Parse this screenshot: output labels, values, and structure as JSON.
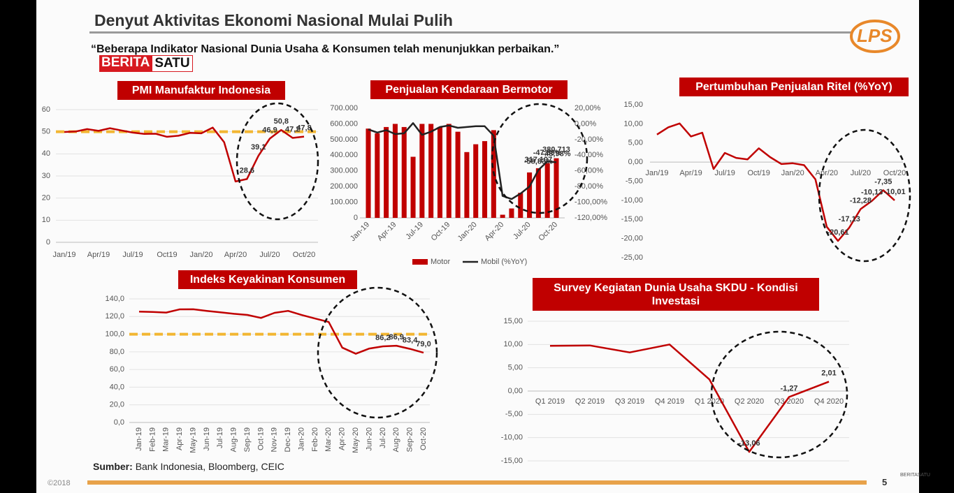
{
  "header": {
    "title": "Denyut Aktivitas Ekonomi Nasional Mulai Pulih",
    "subtitle": "“Beberapa Indikator Nasional Dunia Usaha & Konsumen telah menunjukkan perbaikan.”",
    "logo": "LPS",
    "watermark": [
      "BERITA",
      "SATU"
    ]
  },
  "source": {
    "label": "Sumber:",
    "text": "Bank Indonesia, Bloomberg, CEIC"
  },
  "footer": {
    "copyright": "©2018",
    "page": "5",
    "watermark": "BERITASATU"
  },
  "chart_data": [
    {
      "type": "line",
      "title": "PMI Manufaktur Indonesia",
      "color": "#c00000",
      "grid": true,
      "categories": [
        "Jan/19",
        null,
        null,
        "Apr/19",
        null,
        null,
        "Jul/19",
        null,
        null,
        "Oct19",
        null,
        null,
        "Jan/20",
        null,
        null,
        "Apr/20",
        null,
        null,
        "Jul/20",
        null,
        null,
        "Oct/20"
      ],
      "values": [
        49.9,
        50.1,
        51.2,
        50.4,
        51.6,
        50.6,
        49.6,
        49.0,
        49.1,
        47.7,
        48.2,
        49.5,
        49.3,
        51.9,
        45.3,
        27.5,
        28.6,
        39.1,
        46.9,
        50.8,
        47.2,
        47.8
      ],
      "value_labels": [
        null,
        null,
        null,
        null,
        null,
        null,
        null,
        null,
        null,
        null,
        null,
        null,
        null,
        null,
        null,
        null,
        "28,6",
        "39,1",
        "46,9",
        "50,8",
        "47,2",
        "47,8"
      ],
      "reference_line": 50,
      "reference_color": "#f2b632",
      "ylim": [
        0,
        60
      ],
      "yticks": [
        0,
        10,
        20,
        30,
        40,
        50,
        60
      ]
    },
    {
      "type": "bar",
      "title": "Penjualan Kendaraan Bermotor",
      "legend": "bottom",
      "categories": [
        "Jan-19",
        null,
        null,
        "Apr-19",
        null,
        null,
        "Jul-19",
        null,
        null,
        "Oct-19",
        null,
        null,
        "Jan-20",
        null,
        null,
        "Apr-20",
        null,
        null,
        "Jul-20",
        null,
        null,
        "Oct-20"
      ],
      "series": [
        {
          "name": "Motor",
          "type": "bar",
          "color": "#c00000",
          "values": [
            570000,
            540000,
            580000,
            600000,
            580000,
            390000,
            600000,
            600000,
            580000,
            600000,
            550000,
            420000,
            470000,
            490000,
            560000,
            20000,
            60000,
            160000,
            290000,
            317107,
            350000,
            380713
          ],
          "value_labels": [
            null,
            null,
            null,
            null,
            null,
            null,
            null,
            null,
            null,
            null,
            null,
            null,
            null,
            null,
            null,
            null,
            null,
            null,
            null,
            "317.107",
            null,
            "380.713"
          ]
        },
        {
          "name": "Mobil (%YoY)",
          "type": "line",
          "axis": "y2",
          "color": "#222222",
          "values": [
            -7,
            -11,
            -8,
            -13,
            -12,
            1,
            -14,
            -10,
            -4,
            -2,
            -5,
            -4,
            -3,
            -3,
            -15,
            -92,
            -96,
            -89,
            -80,
            -58.83,
            -47.89,
            -48.98
          ],
          "value_labels": [
            null,
            null,
            null,
            null,
            null,
            null,
            null,
            null,
            null,
            null,
            null,
            null,
            null,
            null,
            null,
            null,
            null,
            null,
            null,
            "-58,83%",
            "-47,89%",
            "-48,98%"
          ]
        }
      ],
      "ylim": [
        0,
        700000
      ],
      "yticks": [
        0,
        {
          "value": 100000,
          "label": "100.000"
        },
        {
          "value": 200000,
          "label": "200.000"
        },
        {
          "value": 300000,
          "label": "300.000"
        },
        {
          "value": 400000,
          "label": "400.000"
        },
        {
          "value": 500000,
          "label": "500.000"
        },
        {
          "value": 600000,
          "label": "600.000"
        },
        {
          "value": 700000,
          "label": "700.000"
        }
      ],
      "y2lim": [
        -120,
        20
      ],
      "y2ticks": [
        {
          "value": -120,
          "label": "-120,00%"
        },
        {
          "value": -100,
          "label": "-100,00%"
        },
        {
          "value": -80,
          "label": "-80,00%"
        },
        {
          "value": -60,
          "label": "-60,00%"
        },
        {
          "value": -40,
          "label": "-40,00%"
        },
        {
          "value": -20,
          "label": "-20,00%"
        },
        {
          "value": 0,
          "label": "0,00%"
        },
        {
          "value": 20,
          "label": "20,00%"
        }
      ]
    },
    {
      "type": "line",
      "title": "Pertumbuhan Penjualan Ritel (%YoY)",
      "color": "#c00000",
      "grid": false,
      "categories": [
        "Jan/19",
        null,
        null,
        "Apr/19",
        null,
        null,
        "Jul/19",
        null,
        null,
        "Oct/19",
        null,
        null,
        "Jan/20",
        null,
        null,
        "Apr/20",
        null,
        null,
        "Jul/20",
        null,
        null,
        "Oct/20"
      ],
      "values": [
        7.2,
        9.1,
        10.1,
        6.7,
        7.7,
        -1.8,
        2.4,
        1.1,
        0.7,
        3.6,
        1.3,
        -0.5,
        -0.3,
        -0.8,
        -4.5,
        -16.9,
        -20.61,
        -17.13,
        -12.28,
        -10.13,
        -7.35,
        -10.01
      ],
      "value_labels": [
        null,
        null,
        null,
        null,
        null,
        null,
        null,
        null,
        null,
        null,
        null,
        null,
        null,
        null,
        null,
        null,
        "-20,61",
        "-17,13",
        "-12,28",
        "-10,13",
        "-7,35",
        "-10,01"
      ],
      "ylim": [
        -25,
        15
      ],
      "yticks": [
        {
          "value": -25,
          "label": "-25,00"
        },
        {
          "value": -20,
          "label": "-20,00"
        },
        {
          "value": -15,
          "label": "-15,00"
        },
        {
          "value": -10,
          "label": "-10,00"
        },
        {
          "value": -5,
          "label": "-5,00"
        },
        {
          "value": 0,
          "label": "0,00"
        },
        {
          "value": 5,
          "label": "5,00"
        },
        {
          "value": 10,
          "label": "10,00"
        },
        {
          "value": 15,
          "label": "15,00"
        }
      ]
    },
    {
      "type": "line",
      "title": "Indeks Keyakinan Konsumen",
      "color": "#c00000",
      "grid": true,
      "categories": [
        "Jan-19",
        "Feb-19",
        "Mar-19",
        "Apr-19",
        "May-19",
        "Jun-19",
        "Jul-19",
        "Aug-19",
        "Sep-19",
        "Oct-19",
        "Nov-19",
        "Dec-19",
        "Jan-20",
        "Feb-20",
        "Mar-20",
        "Apr-20",
        "May-20",
        "Jun-20",
        "Jul-20",
        "Aug-20",
        "Sep-20",
        "Oct-20"
      ],
      "values": [
        125.5,
        125.1,
        124.5,
        128.1,
        128.2,
        126.4,
        124.8,
        123.1,
        121.8,
        118.4,
        124.2,
        126.4,
        121.7,
        117.7,
        113.8,
        84.8,
        77.8,
        83.8,
        86.2,
        86.9,
        83.4,
        79.0
      ],
      "value_labels": [
        null,
        null,
        null,
        null,
        null,
        null,
        null,
        null,
        null,
        null,
        null,
        null,
        null,
        null,
        null,
        null,
        null,
        null,
        "86,2",
        "86,9",
        "83,4",
        "79,0"
      ],
      "reference_line": 100,
      "reference_color": "#f2b632",
      "ylim": [
        0,
        140
      ],
      "yticks": [
        {
          "value": 0,
          "label": "0,0"
        },
        {
          "value": 20,
          "label": "20,0"
        },
        {
          "value": 40,
          "label": "40,0"
        },
        {
          "value": 60,
          "label": "60,0"
        },
        {
          "value": 80,
          "label": "80,0"
        },
        {
          "value": 100,
          "label": "100,0"
        },
        {
          "value": 120,
          "label": "120,0"
        },
        {
          "value": 140,
          "label": "140,0"
        }
      ]
    },
    {
      "type": "line",
      "title": "Survey Kegiatan Dunia Usaha SKDU - Kondisi Investasi",
      "color": "#c00000",
      "grid": true,
      "categories": [
        "Q1 2019",
        "Q2 2019",
        "Q3 2019",
        "Q4 2019",
        "Q1 2020",
        "Q2 2020",
        "Q3 2020",
        "Q4 2020"
      ],
      "values": [
        9.7,
        9.8,
        8.3,
        10.0,
        2.5,
        -13.06,
        -1.27,
        2.01
      ],
      "value_labels": [
        null,
        null,
        null,
        null,
        null,
        "-13,06",
        "-1,27",
        "2,01"
      ],
      "ylim": [
        -15,
        15
      ],
      "yticks": [
        {
          "value": -15,
          "label": "-15,00"
        },
        {
          "value": -10,
          "label": "-10,00"
        },
        {
          "value": -5,
          "label": "-5,00"
        },
        {
          "value": 0,
          "label": "0,00"
        },
        {
          "value": 5,
          "label": "5,00"
        },
        {
          "value": 10,
          "label": "10,00"
        },
        {
          "value": 15,
          "label": "15,00"
        }
      ]
    }
  ]
}
